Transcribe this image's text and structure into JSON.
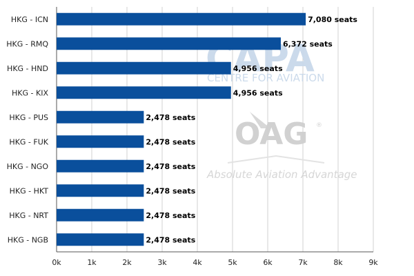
{
  "chart_data": {
    "type": "bar",
    "orientation": "horizontal",
    "categories": [
      "HKG - ICN",
      "HKG - RMQ",
      "HKG - HND",
      "HKG - KIX",
      "HKG - PUS",
      "HKG - FUK",
      "HKG - NGO",
      "HKG - HKT",
      "HKG - NRT",
      "HKG - NGB"
    ],
    "values": [
      7080,
      6372,
      4956,
      4956,
      2478,
      2478,
      2478,
      2478,
      2478,
      2478
    ],
    "data_labels": [
      "7,080 seats",
      "6,372 seats",
      "4,956 seats",
      "4,956 seats",
      "2,478 seats",
      "2,478 seats",
      "2,478 seats",
      "2,478 seats",
      "2,478 seats",
      "2,478 seats"
    ],
    "xticks": [
      0,
      1000,
      2000,
      3000,
      4000,
      5000,
      6000,
      7000,
      8000,
      9000
    ],
    "xtick_labels": [
      "0k",
      "1k",
      "2k",
      "3k",
      "4k",
      "5k",
      "6k",
      "7k",
      "8k",
      "9k"
    ],
    "xlim": [
      0,
      9000
    ],
    "grid": true,
    "bar_color": "#0a4f9c",
    "title": "",
    "xlabel": "",
    "ylabel": ""
  },
  "watermark": {
    "capa": "CAPA",
    "capa_sub": "CENTRE FOR AVIATION",
    "oag": "OAG",
    "oag_mark": "®",
    "oag_tagline": "Absolute Aviation Advantage"
  }
}
